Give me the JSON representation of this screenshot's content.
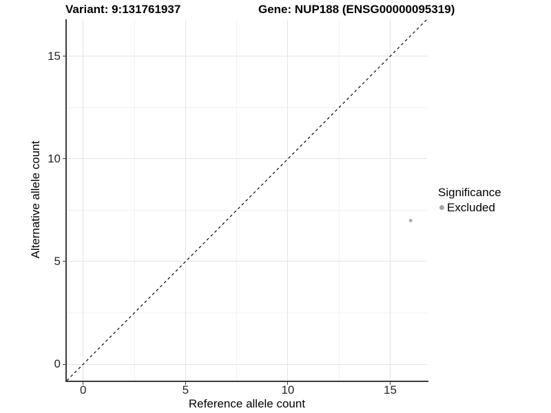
{
  "titles": {
    "variant": "Variant: 9:131761937",
    "gene": "Gene: NUP188 (ENSG00000095319)"
  },
  "chart_data": {
    "type": "scatter",
    "xlabel": "Reference allele count",
    "ylabel": "Alternative allele count",
    "xlim": [
      -0.8,
      16.8
    ],
    "ylim": [
      -0.8,
      16.8
    ],
    "x_major_ticks": [
      0,
      5,
      10,
      15
    ],
    "y_major_ticks": [
      0,
      5,
      10,
      15
    ],
    "x_minor_ticks": [
      2.5,
      7.5,
      12.5
    ],
    "y_minor_ticks": [
      2.5,
      7.5,
      12.5
    ],
    "grid": "major+minor",
    "series": [
      {
        "name": "Excluded",
        "color": "#ababab",
        "point_radius": 2.5,
        "points": [
          {
            "x": 16,
            "y": 7
          }
        ]
      }
    ],
    "reference_line": {
      "slope": 1,
      "intercept": 0,
      "style": "dashed",
      "color": "#000000"
    },
    "legend": {
      "title": "Significance",
      "position": "right",
      "items": [
        {
          "label": "Excluded",
          "color": "#a3a3a3"
        }
      ]
    }
  },
  "colors": {
    "background": "#ffffff",
    "grid_major": "#e4e4e4",
    "grid_minor": "#f1f1f1",
    "axis_line": "#3a3a3a",
    "tick_text": "#262626"
  }
}
